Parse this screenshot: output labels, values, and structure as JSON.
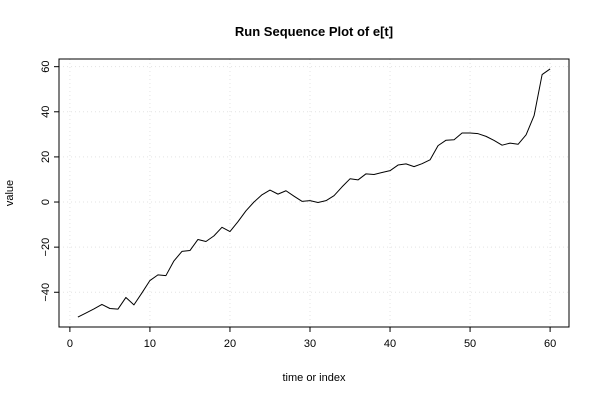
{
  "chart_data": {
    "type": "line",
    "title": "Run Sequence Plot of e[t]",
    "xlabel": "time or index",
    "ylabel": "value",
    "xlim": [
      1,
      60
    ],
    "ylim": [
      -51,
      59
    ],
    "x_ticks": [
      0,
      10,
      20,
      30,
      40,
      50,
      60
    ],
    "y_ticks": [
      -40,
      -20,
      0,
      20,
      40,
      60
    ],
    "grid": true,
    "series": [
      {
        "name": "",
        "color": "#000000",
        "x": [
          1,
          2,
          3,
          4,
          5,
          6,
          7,
          8,
          9,
          10,
          11,
          12,
          13,
          14,
          15,
          16,
          17,
          18,
          19,
          20,
          21,
          22,
          23,
          24,
          25,
          26,
          27,
          28,
          29,
          30,
          31,
          32,
          33,
          34,
          35,
          36,
          37,
          38,
          39,
          40,
          41,
          42,
          43,
          44,
          45,
          46,
          47,
          48,
          49,
          50,
          51,
          52,
          53,
          54,
          55,
          56,
          57,
          58,
          59,
          60
        ],
        "y": [
          -51,
          -49.2,
          -47.4,
          -45.4,
          -47.2,
          -47.5,
          -42.3,
          -45.6,
          -40.3,
          -34.8,
          -32.3,
          -32.6,
          -26.1,
          -21.9,
          -21.5,
          -16.6,
          -17.5,
          -15,
          -11.2,
          -13.1,
          -8.7,
          -3.9,
          0,
          3.2,
          5.3,
          3.5,
          5,
          2.6,
          0.3,
          0.6,
          -0.2,
          0.6,
          2.8,
          6.7,
          10.3,
          9.8,
          12.5,
          12.2,
          13.1,
          13.9,
          16.4,
          16.9,
          15.7,
          17,
          18.7,
          25,
          27.4,
          27.6,
          30.6,
          30.6,
          30.3,
          29.1,
          27.3,
          25.2,
          26.1,
          25.6,
          29.8,
          38.3,
          56.5,
          59
        ]
      }
    ]
  }
}
